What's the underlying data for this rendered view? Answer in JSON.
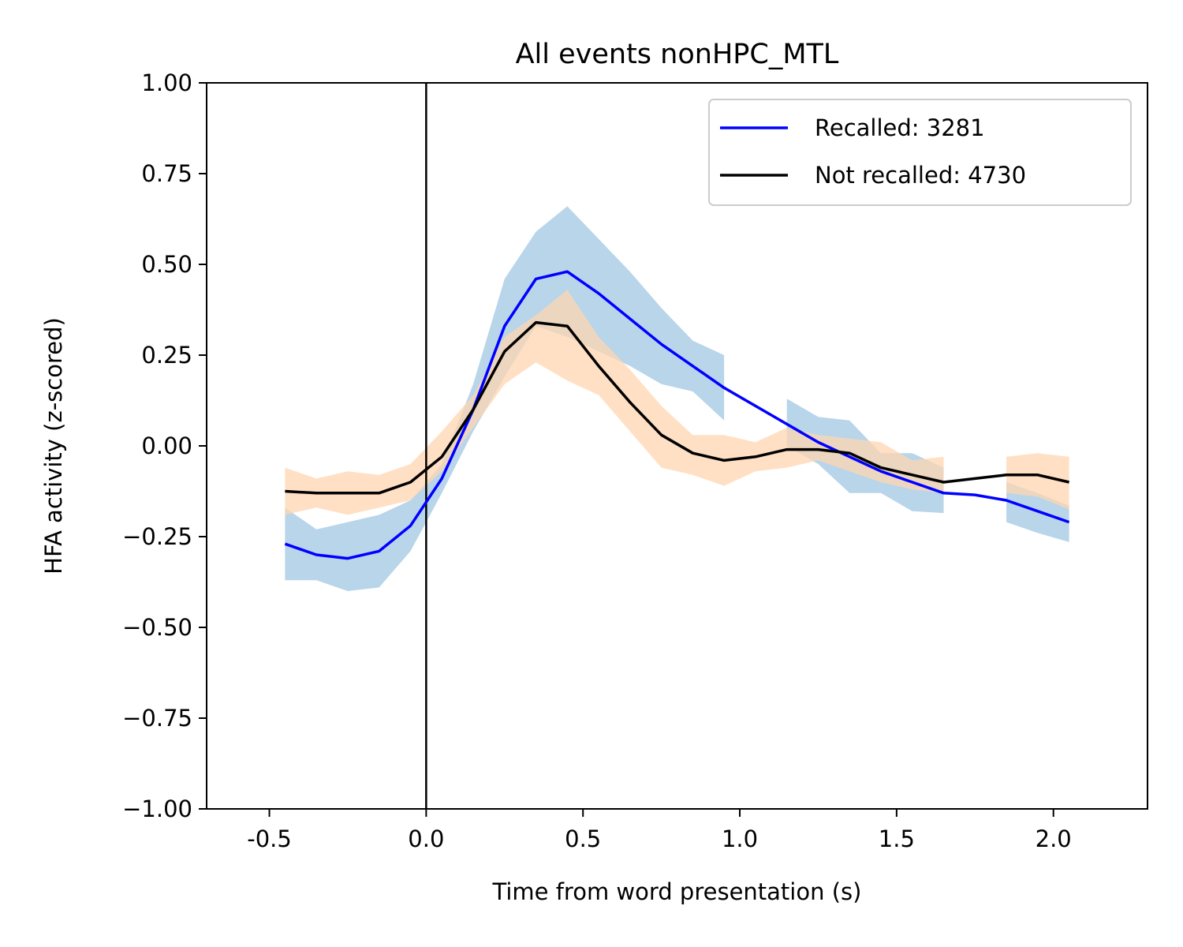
{
  "chart_data": {
    "type": "line",
    "title": "All events nonHPC_MTL",
    "xlabel": "Time from word presentation (s)",
    "ylabel": "HFA activity (z-scored)",
    "xlim": [
      -0.7,
      2.3
    ],
    "ylim": [
      -1.0,
      1.0
    ],
    "x_ticks": [
      -0.5,
      0.0,
      0.5,
      1.0,
      1.5,
      2.0
    ],
    "x_tick_labels": [
      "-0.5",
      "0.0",
      "0.5",
      "1.0",
      "1.5",
      "2.0"
    ],
    "y_ticks": [
      1.0,
      0.75,
      0.5,
      0.25,
      0.0,
      -0.25,
      -0.5,
      -0.75,
      -1.0
    ],
    "y_tick_labels": [
      "1.00",
      "0.75",
      "0.50",
      "0.25",
      "0.00",
      "−0.25",
      "−0.50",
      "−0.75",
      "−1.00"
    ],
    "vline_x": 0.0,
    "legend_position": "top-right",
    "x": [
      -0.45,
      -0.35,
      -0.25,
      -0.15,
      -0.05,
      0.05,
      0.15,
      0.25,
      0.35,
      0.45,
      0.55,
      0.65,
      0.75,
      0.85,
      0.95,
      1.05,
      1.15,
      1.25,
      1.35,
      1.45,
      1.55,
      1.65,
      1.75,
      1.85,
      1.95,
      2.05
    ],
    "series": [
      {
        "name": "Recalled: 3281",
        "color": "#0000ff",
        "band_color": "#b9d5ea",
        "values": [
          -0.27,
          -0.3,
          -0.31,
          -0.29,
          -0.22,
          -0.09,
          0.1,
          0.33,
          0.46,
          0.48,
          0.42,
          0.35,
          0.28,
          0.22,
          0.16,
          0.11,
          0.06,
          0.01,
          -0.03,
          -0.07,
          -0.1,
          -0.13,
          -0.135,
          -0.15,
          -0.18,
          -0.21
        ],
        "lower": [
          -0.37,
          -0.37,
          -0.4,
          -0.39,
          -0.29,
          -0.13,
          0.04,
          0.19,
          0.33,
          0.3,
          0.26,
          0.22,
          0.17,
          0.15,
          0.07,
          null,
          0.0,
          -0.05,
          -0.13,
          -0.13,
          -0.18,
          -0.185,
          null,
          -0.21,
          -0.24,
          -0.265
        ],
        "upper": [
          -0.17,
          -0.23,
          -0.21,
          -0.19,
          -0.15,
          -0.05,
          0.17,
          0.46,
          0.59,
          0.66,
          0.57,
          0.48,
          0.38,
          0.29,
          0.25,
          null,
          0.13,
          0.08,
          0.07,
          -0.02,
          -0.02,
          -0.06,
          null,
          -0.1,
          -0.13,
          -0.165
        ]
      },
      {
        "name": "Not recalled: 4730",
        "color": "#000000",
        "band_color": "#ffd6b0",
        "values": [
          -0.125,
          -0.13,
          -0.13,
          -0.13,
          -0.1,
          -0.03,
          0.1,
          0.26,
          0.34,
          0.33,
          0.22,
          0.12,
          0.03,
          -0.02,
          -0.04,
          -0.03,
          -0.01,
          -0.01,
          -0.02,
          -0.06,
          -0.08,
          -0.1,
          -0.09,
          -0.08,
          -0.08,
          -0.1
        ],
        "lower": [
          -0.19,
          -0.17,
          -0.19,
          -0.17,
          -0.15,
          -0.07,
          0.05,
          0.17,
          0.23,
          0.18,
          0.14,
          0.04,
          -0.06,
          -0.08,
          -0.11,
          -0.07,
          -0.06,
          -0.04,
          -0.07,
          -0.1,
          -0.12,
          -0.13,
          null,
          -0.13,
          -0.14,
          -0.175
        ],
        "upper": [
          -0.06,
          -0.09,
          -0.07,
          -0.08,
          -0.05,
          0.04,
          0.14,
          0.3,
          0.36,
          0.43,
          0.3,
          0.21,
          0.11,
          0.03,
          0.03,
          0.01,
          0.05,
          0.03,
          0.02,
          0.01,
          -0.04,
          -0.03,
          null,
          -0.03,
          -0.02,
          -0.03
        ]
      }
    ]
  }
}
